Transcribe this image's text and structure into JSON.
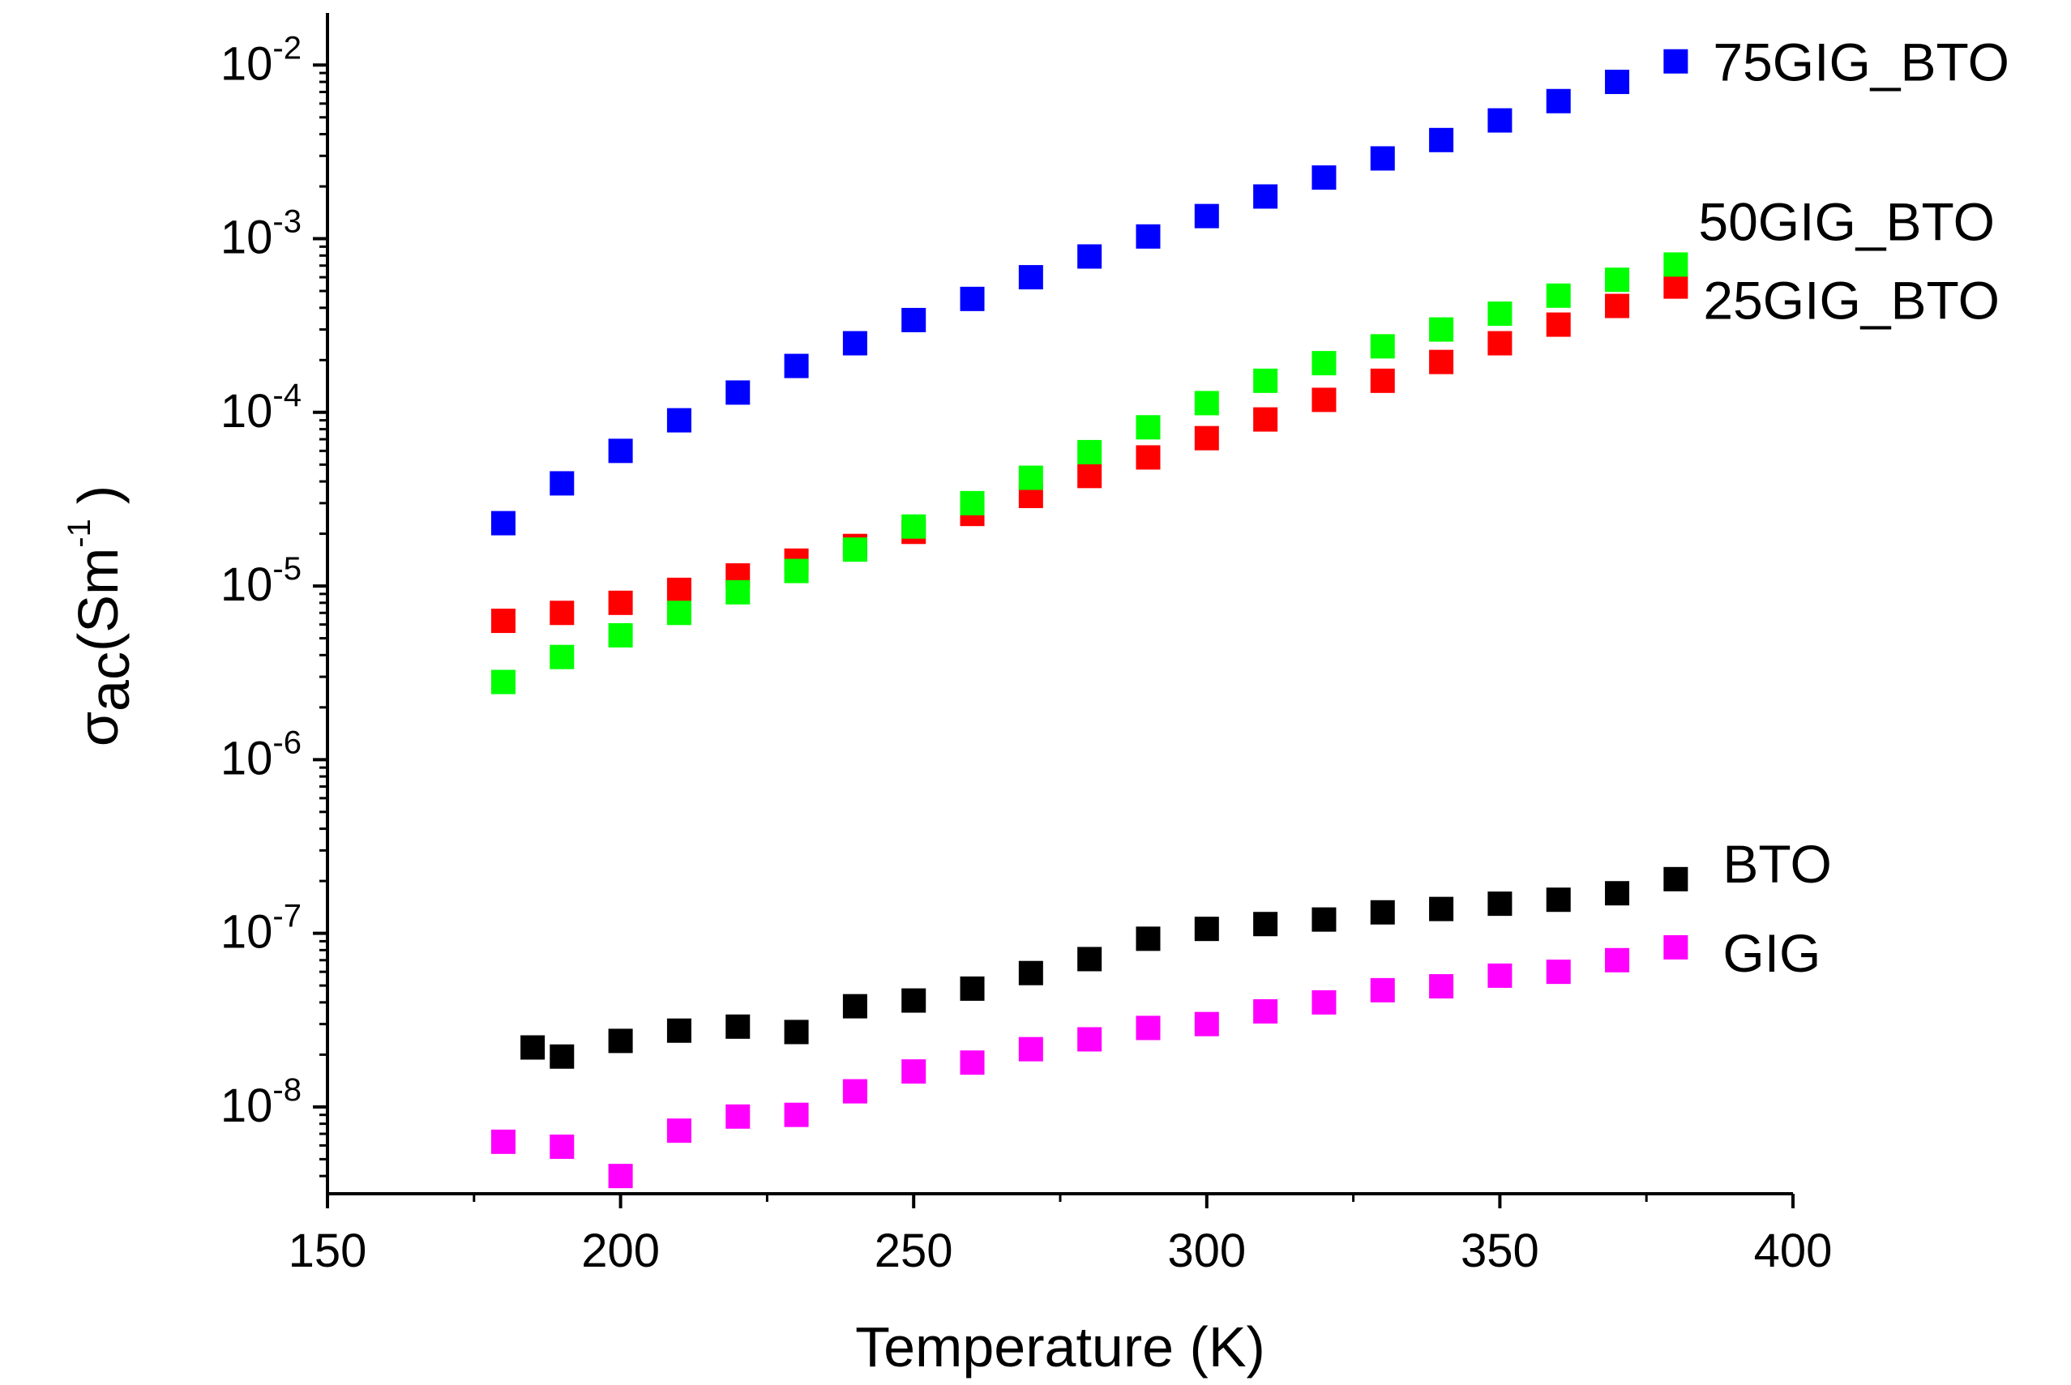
{
  "chart_data": {
    "type": "scatter",
    "title": "",
    "xlabel": "Temperature (K)",
    "ylabel": {
      "sigma": "σ",
      "sub": "ac",
      "open": "(Sm",
      "exp": "-1",
      "close": ")"
    },
    "xlim": [
      150,
      400
    ],
    "ylim_log10": [
      -8.5,
      -1.7
    ],
    "yscale": "log",
    "x_ticks": [
      "150",
      "200",
      "250",
      "300",
      "350",
      "400"
    ],
    "y_ticks": [
      {
        "base": "10",
        "exp": "-8"
      },
      {
        "base": "10",
        "exp": "-7"
      },
      {
        "base": "10",
        "exp": "-6"
      },
      {
        "base": "10",
        "exp": "-5"
      },
      {
        "base": "10",
        "exp": "-4"
      },
      {
        "base": "10",
        "exp": "-3"
      },
      {
        "base": "10",
        "exp": "-2"
      }
    ],
    "series": [
      {
        "name": "75GIG_BTO",
        "color": "#0000ff",
        "x": [
          180,
          190,
          200,
          210,
          220,
          230,
          240,
          250,
          260,
          270,
          280,
          290,
          300,
          310,
          320,
          330,
          340,
          350,
          360,
          370,
          380
        ],
        "y": [
          2.3e-05,
          3.9e-05,
          6e-05,
          9e-05,
          0.00013,
          0.000185,
          0.00025,
          0.00034,
          0.00045,
          0.0006,
          0.00079,
          0.00103,
          0.00135,
          0.00175,
          0.00225,
          0.0029,
          0.0037,
          0.0048,
          0.0062,
          0.008,
          0.0105
        ]
      },
      {
        "name": "25GIG_BTO",
        "color": "#ff0000",
        "x": [
          180,
          190,
          200,
          210,
          220,
          230,
          240,
          250,
          260,
          270,
          280,
          290,
          300,
          310,
          320,
          330,
          340,
          350,
          360,
          370,
          380
        ],
        "y": [
          6.3e-06,
          7e-06,
          8e-06,
          9.5e-06,
          1.15e-05,
          1.4e-05,
          1.7e-05,
          2.05e-05,
          2.6e-05,
          3.3e-05,
          4.3e-05,
          5.5e-05,
          7.1e-05,
          9.1e-05,
          0.000118,
          0.000152,
          0.000195,
          0.00025,
          0.00032,
          0.00041,
          0.00053
        ]
      },
      {
        "name": "50GIG_BTO",
        "color": "#00ff00",
        "x": [
          180,
          190,
          200,
          210,
          220,
          230,
          240,
          250,
          260,
          270,
          280,
          290,
          300,
          310,
          320,
          330,
          340,
          350,
          360,
          370,
          380
        ],
        "y": [
          2.8e-06,
          3.9e-06,
          5.2e-06,
          7e-06,
          9.2e-06,
          1.22e-05,
          1.62e-05,
          2.2e-05,
          3e-05,
          4.2e-05,
          5.9e-05,
          8.2e-05,
          0.000113,
          0.000152,
          0.000192,
          0.00024,
          0.0003,
          0.00037,
          0.00047,
          0.00058,
          0.00071
        ]
      },
      {
        "name": "BTO",
        "color": "#000000",
        "x": [
          185,
          190,
          200,
          210,
          220,
          230,
          240,
          250,
          260,
          270,
          280,
          290,
          300,
          310,
          320,
          330,
          340,
          350,
          360,
          370,
          380
        ],
        "y": [
          2.2e-08,
          1.95e-08,
          2.4e-08,
          2.75e-08,
          2.9e-08,
          2.7e-08,
          3.8e-08,
          4.1e-08,
          4.8e-08,
          5.9e-08,
          7.1e-08,
          9.3e-08,
          1.06e-07,
          1.13e-07,
          1.2e-07,
          1.32e-07,
          1.38e-07,
          1.48e-07,
          1.56e-07,
          1.7e-07,
          2.05e-07
        ]
      },
      {
        "name": "GIG",
        "color": "#ff00ff",
        "x": [
          180,
          190,
          200,
          210,
          220,
          230,
          240,
          250,
          260,
          270,
          280,
          290,
          300,
          310,
          320,
          330,
          340,
          350,
          360,
          370,
          380
        ],
        "y": [
          6.3e-09,
          5.9e-09,
          4e-09,
          7.3e-09,
          8.8e-09,
          9e-09,
          1.23e-08,
          1.6e-08,
          1.8e-08,
          2.15e-08,
          2.45e-08,
          2.85e-08,
          3e-08,
          3.55e-08,
          4e-08,
          4.7e-08,
          4.95e-08,
          5.7e-08,
          6e-08,
          7e-08,
          8.3e-08
        ]
      }
    ]
  }
}
